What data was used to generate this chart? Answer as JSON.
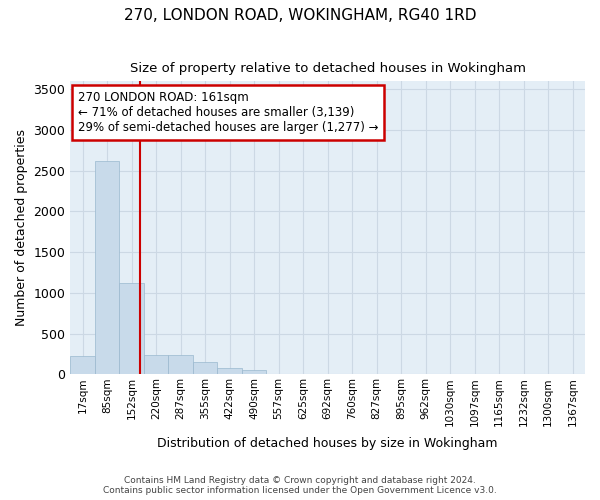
{
  "title": "270, LONDON ROAD, WOKINGHAM, RG40 1RD",
  "subtitle": "Size of property relative to detached houses in Wokingham",
  "xlabel": "Distribution of detached houses by size in Wokingham",
  "ylabel": "Number of detached properties",
  "footer_line1": "Contains HM Land Registry data © Crown copyright and database right 2024.",
  "footer_line2": "Contains public sector information licensed under the Open Government Licence v3.0.",
  "bin_labels": [
    "17sqm",
    "85sqm",
    "152sqm",
    "220sqm",
    "287sqm",
    "355sqm",
    "422sqm",
    "490sqm",
    "557sqm",
    "625sqm",
    "692sqm",
    "760sqm",
    "827sqm",
    "895sqm",
    "962sqm",
    "1030sqm",
    "1097sqm",
    "1165sqm",
    "1232sqm",
    "1300sqm",
    "1367sqm"
  ],
  "bar_values": [
    230,
    2620,
    1120,
    240,
    240,
    150,
    80,
    50,
    0,
    0,
    0,
    0,
    0,
    0,
    0,
    0,
    0,
    0,
    0,
    0,
    0
  ],
  "bar_color": "#c8daea",
  "bar_edge_color": "#9ab8ce",
  "grid_color": "#ccd8e4",
  "background_color": "#e4eef6",
  "vline_x": 2.35,
  "vline_color": "#cc0000",
  "annotation_line1": "270 LONDON ROAD: 161sqm",
  "annotation_line2": "← 71% of detached houses are smaller (3,139)",
  "annotation_line3": "29% of semi-detached houses are larger (1,277) →",
  "annotation_box_edgecolor": "#cc0000",
  "ylim_max": 3600,
  "yticks": [
    0,
    500,
    1000,
    1500,
    2000,
    2500,
    3000,
    3500
  ]
}
